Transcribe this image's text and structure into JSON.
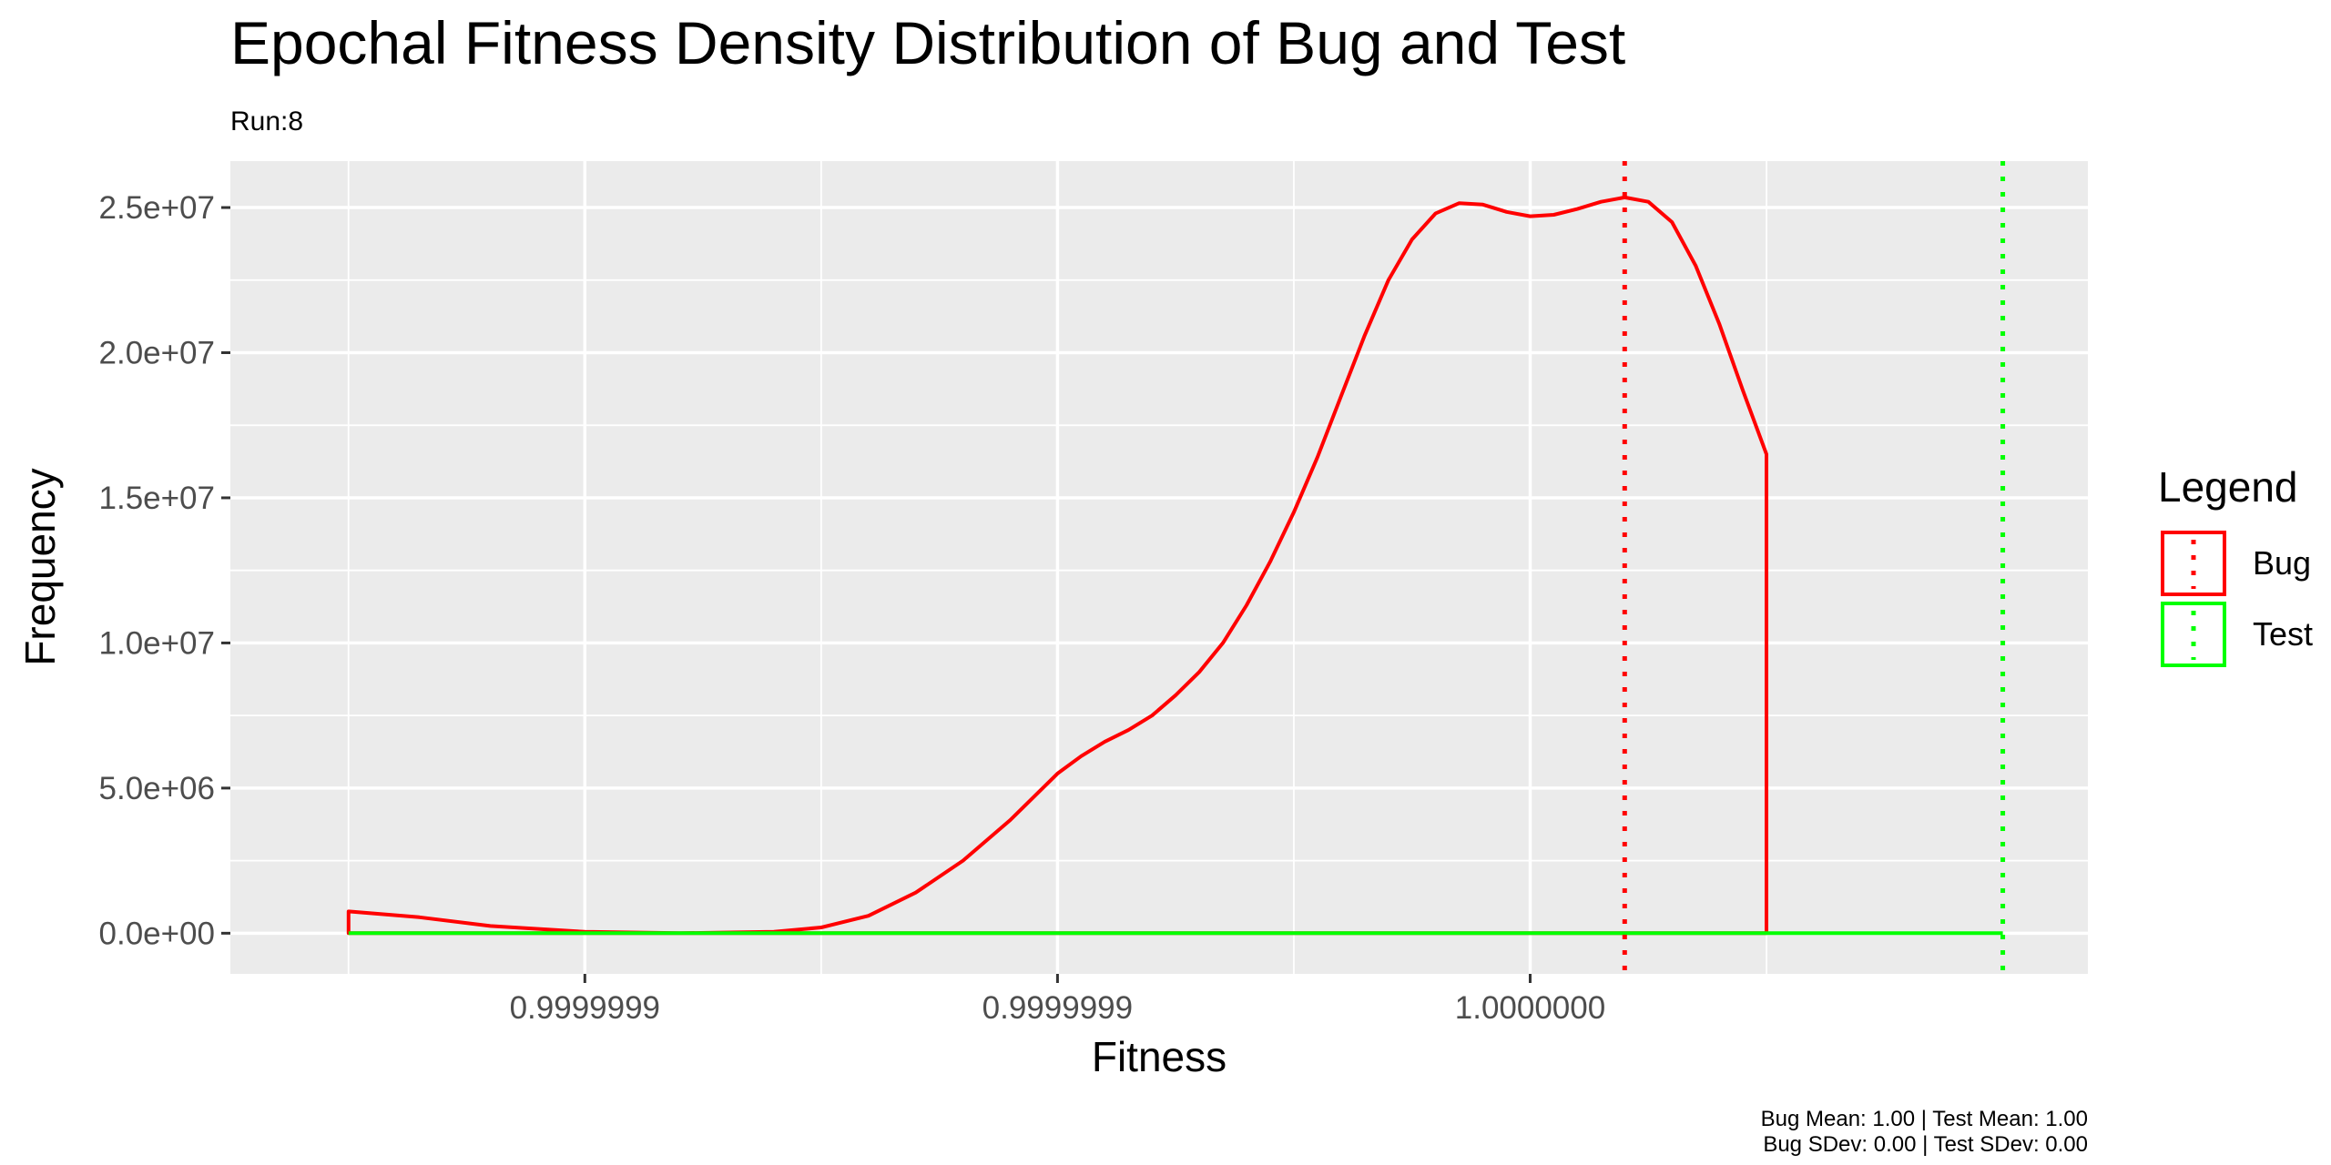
{
  "chart_data": {
    "type": "line",
    "title": "Epochal Fitness Density Distribution of Bug and Test",
    "subtitle": "Run:8",
    "xlabel": "Fitness",
    "ylabel": "Frequency",
    "x_ticks": [
      "0.9999999",
      "0.9999999",
      "1.0000000"
    ],
    "y_ticks": [
      "0.0e+00",
      "5.0e+06",
      "1.0e+07",
      "1.5e+07",
      "2.0e+07",
      "2.5e+07"
    ],
    "ylim": [
      -1400000,
      26600000
    ],
    "grid": true,
    "legend_position": "right",
    "legend_title": "Legend",
    "caption": [
      "Bug Mean: 1.00 | Test Mean: 1.00",
      "Bug SDev: 0.00 | Test SDev: 0.00"
    ],
    "series": [
      {
        "name": "Bug",
        "color": "#ff0000",
        "x": [
          -0.5,
          -0.35,
          -0.2,
          0.0,
          0.2,
          0.4,
          0.5,
          0.6,
          0.7,
          0.8,
          0.9,
          1.0,
          1.05,
          1.1,
          1.15,
          1.2,
          1.25,
          1.3,
          1.35,
          1.4,
          1.45,
          1.5,
          1.55,
          1.6,
          1.65,
          1.7,
          1.75,
          1.8,
          1.85,
          1.9,
          1.95,
          2.0,
          2.05,
          2.1,
          2.15,
          2.2,
          2.25,
          2.3,
          2.35,
          2.4,
          2.45,
          2.5,
          2.55,
          2.6,
          2.65,
          2.7,
          2.75,
          2.8,
          2.85,
          2.9,
          2.95,
          3.0
        ],
        "values": [
          750000,
          550000,
          250000,
          50000,
          0,
          50000,
          200000,
          600000,
          1400000,
          2500000,
          3900000,
          5500000,
          6100000,
          6600000,
          7000000,
          7500000,
          8200000,
          9000000,
          10000000,
          11300000,
          12800000,
          14500000,
          16400000,
          18500000,
          20600000,
          22500000,
          23900000,
          24800000,
          25150000,
          25100000,
          24850000,
          24700000,
          24750000,
          24950000,
          25200000,
          25350000,
          25200000,
          24500000,
          23000000,
          21000000,
          18700000,
          16500000,
          0,
          0,
          0,
          0,
          0,
          0,
          0,
          0,
          0,
          0
        ],
        "mean_x": 2.2
      },
      {
        "name": "Test",
        "color": "#00ff00",
        "x": [
          -0.5,
          3.0
        ],
        "values": [
          0,
          0
        ],
        "mean_x": 3.0
      }
    ]
  }
}
